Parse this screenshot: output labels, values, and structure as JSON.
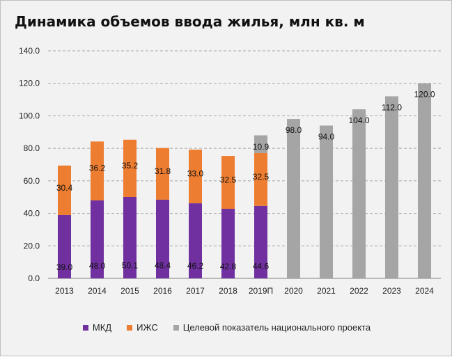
{
  "chart_data": {
    "type": "bar",
    "title": "Динамика объемов ввода жилья, млн кв. м",
    "xlabel": "",
    "ylabel": "",
    "ylim": [
      0,
      140
    ],
    "yticks": [
      "0.0",
      "20.0",
      "40.0",
      "60.0",
      "80.0",
      "100.0",
      "120.0",
      "140.0"
    ],
    "stacked": true,
    "grid": true,
    "legend_position": "bottom",
    "categories": [
      "2013",
      "2014",
      "2015",
      "2016",
      "2017",
      "2018",
      "2019П",
      "2020",
      "2021",
      "2022",
      "2023",
      "2024"
    ],
    "series": [
      {
        "name": "МКД",
        "color": "#7030a0",
        "values": [
          39.0,
          48.0,
          50.1,
          48.4,
          46.2,
          42.8,
          44.6,
          null,
          null,
          null,
          null,
          null
        ],
        "labels": [
          "39.0",
          "48.0",
          "50.1",
          "48.4",
          "46.2",
          "42.8",
          "44.6",
          null,
          null,
          null,
          null,
          null
        ]
      },
      {
        "name": "ИЖС",
        "color": "#ed7d31",
        "values": [
          30.4,
          36.2,
          35.2,
          31.8,
          33.0,
          32.5,
          32.5,
          null,
          null,
          null,
          null,
          null
        ],
        "labels": [
          "30.4",
          "36.2",
          "35.2",
          "31.8",
          "33.0",
          "32.5",
          "32.5",
          null,
          null,
          null,
          null,
          null
        ]
      },
      {
        "name": "Целевой показатель национального проекта",
        "color": "#a5a5a5",
        "values": [
          null,
          null,
          null,
          null,
          null,
          null,
          10.9,
          98.0,
          94.0,
          104.0,
          112.0,
          120.0
        ],
        "labels": [
          null,
          null,
          null,
          null,
          null,
          null,
          "10.9",
          "98.0",
          "94.0",
          "104.0",
          "112.0",
          "120.0"
        ]
      }
    ]
  }
}
